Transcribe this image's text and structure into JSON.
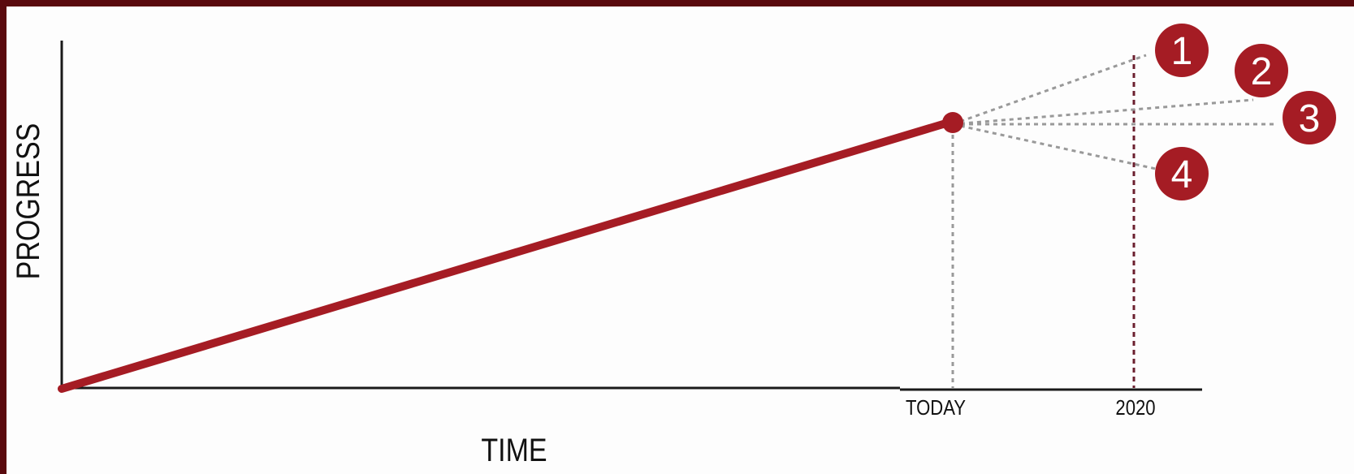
{
  "chart_data": {
    "type": "line",
    "ylabel": "PROGRESS",
    "xlabel": "TIME",
    "tick_labels": [
      "TODAY",
      "2020"
    ],
    "scenarios": [
      "1",
      "2",
      "3",
      "4"
    ],
    "colors": {
      "trend": "#a51c24",
      "guide": "#999999",
      "marker": "#6b1f2e",
      "badge": "#a51c24",
      "axis": "#1a1a1a"
    }
  }
}
